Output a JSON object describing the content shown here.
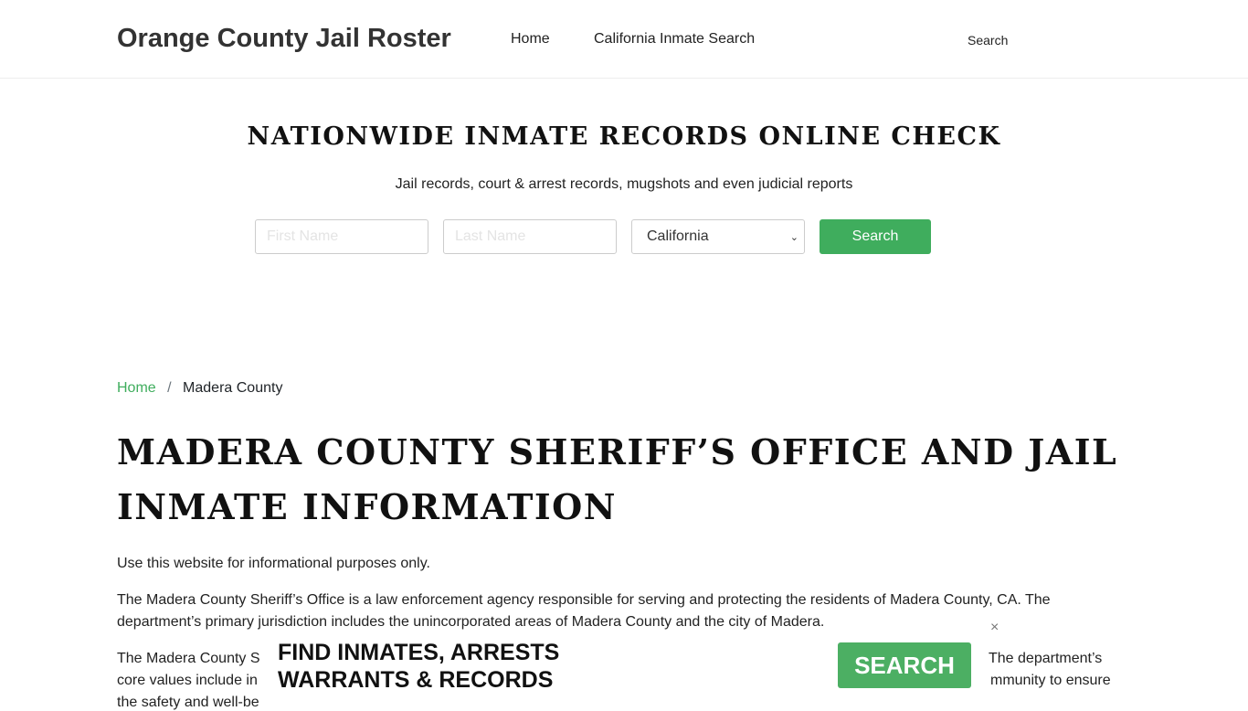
{
  "nav": {
    "brand": "Orange County Jail Roster",
    "links": [
      "Home",
      "California Inmate Search"
    ],
    "search": "Search"
  },
  "hero": {
    "title": "NATIONWIDE INMATE RECORDS ONLINE CHECK",
    "subtitle": "Jail records, court & arrest records, mugshots and even judicial reports",
    "first_placeholder": "First Name",
    "last_placeholder": "Last Name",
    "state": "California",
    "button": "Search"
  },
  "breadcrumb": {
    "home": "Home",
    "sep": "/",
    "current": "Madera County"
  },
  "page_title": "MADERA COUNTY SHERIFF’S OFFICE AND JAIL INMATE INFORMATION",
  "paragraphs": [
    "Use this website for informational purposes only.",
    "The Madera County Sheriff’s Office is a law enforcement agency responsible for serving and protecting the residents of Madera County, CA. The department’s primary jurisdiction includes the unincorporated areas of Madera County and the city of Madera."
  ],
  "partial": {
    "l1": "The Madera County S",
    "l2": "core values include in",
    "l3": "the safety and well-be",
    "r1": "The department’s",
    "r2": "mmunity to ensure"
  },
  "ad": {
    "line1": "FIND INMATES, ARRESTS",
    "line2": "WARRANTS & RECORDS",
    "button": "SEARCH",
    "close": "×"
  }
}
